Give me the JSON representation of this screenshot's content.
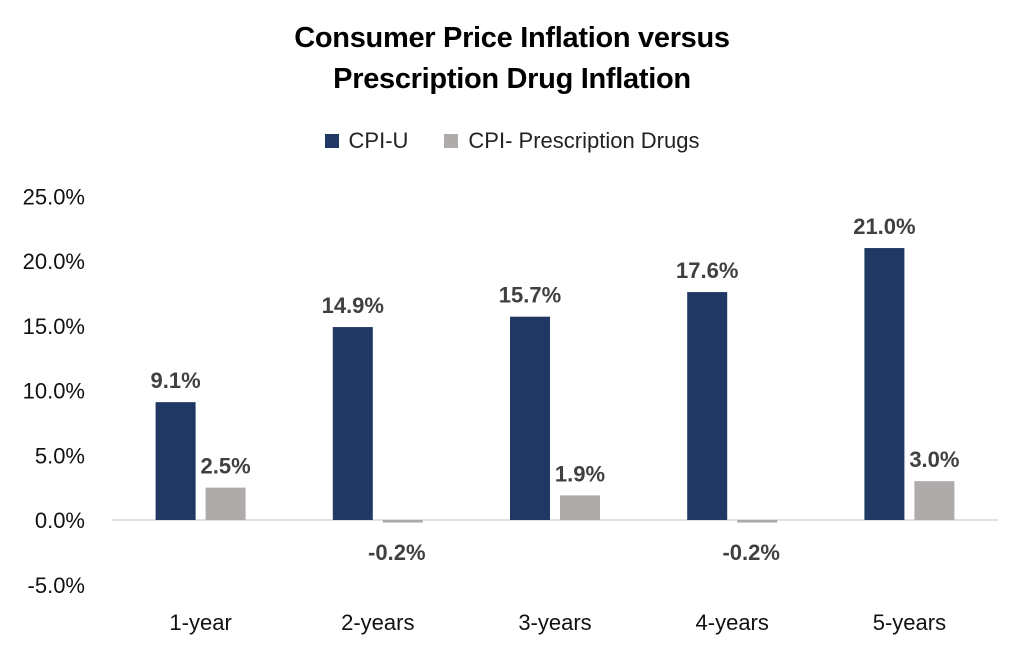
{
  "chart_data": {
    "type": "bar",
    "title": "Consumer Price Inflation versus Prescription Drug Inflation",
    "title_lines": [
      "Consumer Price Inflation versus",
      "Prescription Drug Inflation"
    ],
    "categories": [
      "1-year",
      "2-years",
      "3-years",
      "4-years",
      "5-years"
    ],
    "series": [
      {
        "name": "CPI-U",
        "color": "#1f3864",
        "values": [
          9.1,
          14.9,
          15.7,
          17.6,
          21.0
        ],
        "labels": [
          "9.1%",
          "14.9%",
          "15.7%",
          "17.6%",
          "21.0%"
        ]
      },
      {
        "name": "CPI- Prescription Drugs",
        "color": "#afabab",
        "values": [
          2.5,
          -0.2,
          1.9,
          -0.2,
          3.0
        ],
        "labels": [
          "2.5%",
          "-0.2%",
          "1.9%",
          "-0.2%",
          "3.0%"
        ]
      }
    ],
    "ylim": [
      -5,
      25
    ],
    "yticks": [
      25,
      20,
      15,
      10,
      5,
      0,
      -5
    ],
    "ytick_labels": [
      "25.0%",
      "20.0%",
      "15.0%",
      "10.0%",
      "5.0%",
      "0.0%",
      "-5.0%"
    ],
    "xlabel": "",
    "ylabel": "",
    "legend_position": "top",
    "grid": false
  }
}
